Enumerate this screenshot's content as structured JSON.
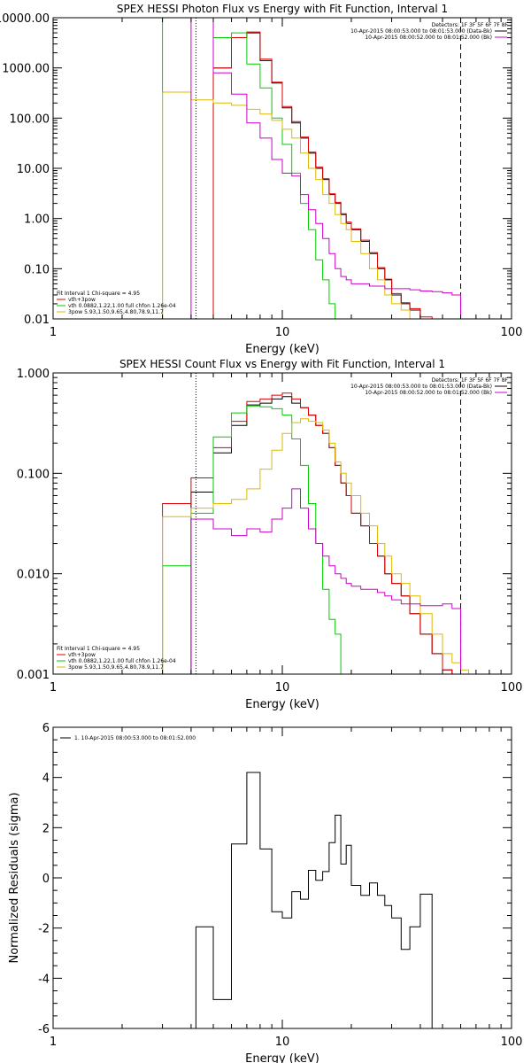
{
  "chart_data": [
    {
      "type": "line",
      "title": "SPEX HESSI Photon Flux vs Energy with Fit Function, Interval 1",
      "xlabel": "Energy (keV)",
      "ylabel": "",
      "xscale": "log",
      "yscale": "log",
      "xlim": [
        1,
        100
      ],
      "ylim": [
        0.01,
        10000
      ],
      "xticks": [
        "1",
        "10",
        "100"
      ],
      "yticks": [
        "0.01",
        "0.10",
        "1.00",
        "10.00",
        "100.00",
        "1000.00",
        "10000.00"
      ],
      "ytick_values": [
        0.01,
        0.1,
        1,
        10,
        100,
        1000,
        10000
      ],
      "vlines": [
        {
          "x": 4.2,
          "style": "dotted",
          "color": "#000000"
        },
        {
          "x": 60,
          "style": "dashed",
          "color": "#000000"
        }
      ],
      "legend_tr": [
        "Detectors: 1F 3F 5F 6F 7F 8F",
        "10-Apr-2015 08:00:53.000 to 08:01:53.000 (Data-Bk)",
        "10-Apr-2015 08:00:52.000 to 08:01:52.000 (Bk)"
      ],
      "legend_tr_colors": [
        null,
        "#000000",
        "#cc00cc"
      ],
      "legend_bl": [
        "Fit Interval 1   Chi-square = 4.95",
        "vth+3pow",
        "vth 0.0882,1.22,1.00  full chfon 1.26e-04",
        "3pow 5.93,1.50,9.65,4.80,78.9,11.7"
      ],
      "legend_bl_colors": [
        null,
        "#dd0000",
        "#00cc00",
        "#ddbb00"
      ],
      "edges": [
        3.0,
        4.0,
        5.0,
        6.0,
        7.0,
        8.0,
        9.0,
        10.0,
        11.0,
        12.0,
        13.0,
        14.0,
        15.0,
        16.0,
        17.0,
        18.0,
        19.0,
        20.0,
        22.0,
        24.0,
        26.0,
        28.0,
        30.0,
        33.0,
        36.0,
        40.0,
        45.0,
        50.0,
        55.0,
        60.0
      ],
      "series": [
        {
          "name": "Data-Bk",
          "color": "#000000",
          "start": 2,
          "values": [
            1000,
            4000,
            5000,
            1400,
            500,
            160,
            80,
            40,
            20,
            10,
            6,
            3,
            2,
            1.2,
            0.8,
            0.6,
            0.35,
            0.2,
            0.1,
            0.06,
            0.03,
            0.02,
            0.015,
            0.01
          ]
        },
        {
          "name": "vth+3pow",
          "color": "#dd0000",
          "start": 2,
          "values": [
            1000,
            4000,
            5200,
            1500,
            520,
            170,
            85,
            42,
            21,
            10.5,
            6.2,
            3.1,
            2.1,
            1.25,
            0.85,
            0.62,
            0.37,
            0.21,
            0.105,
            0.062,
            0.032,
            0.021,
            0.016,
            0.011
          ]
        },
        {
          "name": "vth",
          "color": "#00cc00",
          "start": 0,
          "values": [
            10000,
            10000,
            4000,
            5000,
            1200,
            400,
            100,
            30,
            8,
            2,
            0.6,
            0.15,
            0.06,
            0.02,
            0.01
          ]
        },
        {
          "name": "3pow",
          "color": "#ddbb00",
          "start": 0,
          "values": [
            330,
            230,
            200,
            180,
            150,
            120,
            90,
            60,
            40,
            20,
            10,
            6,
            3,
            2,
            1.2,
            0.8,
            0.6,
            0.35,
            0.2,
            0.1,
            0.06,
            0.03,
            0.02,
            0.015,
            0.01,
            0.01,
            0.01,
            0.01,
            0.01
          ]
        },
        {
          "name": "Bk",
          "color": "#cc00cc",
          "start": 1,
          "values": [
            10000,
            800,
            300,
            80,
            40,
            15,
            8,
            7,
            3,
            1.5,
            0.8,
            0.4,
            0.2,
            0.1,
            0.07,
            0.06,
            0.05,
            0.05,
            0.045,
            0.045,
            0.04,
            0.04,
            0.04,
            0.038,
            0.036,
            0.035,
            0.033,
            0.03
          ]
        }
      ]
    },
    {
      "type": "line",
      "title": "SPEX HESSI Count Flux vs Energy with Fit Function, Interval 1",
      "xlabel": "Energy (keV)",
      "ylabel": "",
      "xscale": "log",
      "yscale": "log",
      "xlim": [
        1,
        100
      ],
      "ylim": [
        0.001,
        1
      ],
      "xticks": [
        "1",
        "10",
        "100"
      ],
      "yticks": [
        "0.001",
        "0.010",
        "0.100",
        "1.000"
      ],
      "ytick_values": [
        0.001,
        0.01,
        0.1,
        1
      ],
      "vlines": [
        {
          "x": 4.2,
          "style": "dotted",
          "color": "#000000"
        },
        {
          "x": 60,
          "style": "dashed",
          "color": "#000000"
        }
      ],
      "legend_tr": [
        "Detectors: 1F 3F 5F 6F 7F 8F",
        "10-Apr-2015 08:00:53.000 to 08:01:53.000 (Data-Bk)",
        "10-Apr-2015 08:00:52.000 to 08:01:52.000 (Bk)"
      ],
      "legend_tr_colors": [
        null,
        "#000000",
        "#cc00cc"
      ],
      "legend_bl": [
        "Fit Interval 1   Chi-square = 4.95",
        "vth+3pow",
        "vth 0.0882,1.22,1.00  full chfon 1.26e-04",
        "3pow 5.93,1.50,9.65,4.80,78.9,11.7"
      ],
      "legend_bl_colors": [
        null,
        "#dd0000",
        "#00cc00",
        "#ddbb00"
      ],
      "edges": [
        3.0,
        4.0,
        5.0,
        6.0,
        7.0,
        8.0,
        9.0,
        10.0,
        11.0,
        12.0,
        13.0,
        14.0,
        15.0,
        16.0,
        17.0,
        18.0,
        19.0,
        20.0,
        22.0,
        24.0,
        26.0,
        28.0,
        30.0,
        33.0,
        36.0,
        40.0,
        45.0,
        50.0,
        55.0,
        60.0,
        65.0,
        70.0
      ],
      "series": [
        {
          "name": "Data-Bk",
          "color": "#000000",
          "start": 1,
          "values": [
            0.065,
            0.16,
            0.3,
            0.48,
            0.5,
            0.55,
            0.58,
            0.5,
            0.45,
            0.38,
            0.3,
            0.25,
            0.18,
            0.12,
            0.08,
            0.06,
            0.04,
            0.03,
            0.02,
            0.015,
            0.01,
            0.008,
            0.006,
            0.004,
            0.0025,
            0.0016,
            0.0011
          ]
        },
        {
          "name": "vth+3pow",
          "color": "#dd0000",
          "start": 0,
          "values": [
            0.05,
            0.09,
            0.18,
            0.33,
            0.52,
            0.55,
            0.6,
            0.63,
            0.55,
            0.45,
            0.38,
            0.3,
            0.25,
            0.18,
            0.12,
            0.08,
            0.06,
            0.04,
            0.03,
            0.02,
            0.015,
            0.01,
            0.008,
            0.006,
            0.004,
            0.0025,
            0.0016,
            0.0011
          ]
        },
        {
          "name": "vth",
          "color": "#00cc00",
          "start": 0,
          "values": [
            0.012,
            0.04,
            0.23,
            0.4,
            0.47,
            0.46,
            0.44,
            0.38,
            0.22,
            0.12,
            0.05,
            0.02,
            0.007,
            0.0035,
            0.0025
          ]
        },
        {
          "name": "3pow",
          "color": "#ddbb00",
          "start": 0,
          "values": [
            0.037,
            0.045,
            0.05,
            0.055,
            0.07,
            0.11,
            0.17,
            0.25,
            0.32,
            0.35,
            0.33,
            0.32,
            0.27,
            0.2,
            0.13,
            0.1,
            0.08,
            0.06,
            0.04,
            0.03,
            0.02,
            0.015,
            0.01,
            0.008,
            0.006,
            0.004,
            0.0025,
            0.0016,
            0.0013,
            0.0011,
            0.0009
          ]
        },
        {
          "name": "Bk",
          "color": "#cc00cc",
          "start": 1,
          "values": [
            0.035,
            0.028,
            0.024,
            0.028,
            0.026,
            0.035,
            0.045,
            0.07,
            0.045,
            0.028,
            0.02,
            0.015,
            0.012,
            0.01,
            0.009,
            0.008,
            0.0075,
            0.007,
            0.007,
            0.0065,
            0.006,
            0.0055,
            0.005,
            0.005,
            0.0048,
            0.0048,
            0.005,
            0.0045
          ]
        }
      ]
    },
    {
      "type": "line",
      "title": "",
      "xlabel": "Energy (keV)",
      "ylabel": "Normalized Residuals (sigma)",
      "xscale": "log",
      "yscale": "linear",
      "xlim": [
        1,
        100
      ],
      "ylim": [
        -6,
        6
      ],
      "xticks": [
        "1",
        "10",
        "100"
      ],
      "yticks": [
        "-6",
        "-4",
        "-2",
        "0",
        "2",
        "4",
        "6"
      ],
      "ytick_values": [
        -6,
        -4,
        -2,
        0,
        2,
        4,
        6
      ],
      "legend_tl": [
        "1. 10-Apr-2015 08:00:53.000 to 08:01:52.000"
      ],
      "edges": [
        4.2,
        5.0,
        6.0,
        7.0,
        8.0,
        9.0,
        10.0,
        11.0,
        12.0,
        13.0,
        14.0,
        15.0,
        16.0,
        17.0,
        18.0,
        19.0,
        20.0,
        22.0,
        24.0,
        26.0,
        28.0,
        30.0,
        33.0,
        36.0,
        40.0,
        45.0,
        50.0,
        55.0,
        60.0
      ],
      "series": [
        {
          "name": "",
          "color": "#000000",
          "start": 0,
          "values": [
            -1.95,
            -4.85,
            1.35,
            4.2,
            1.15,
            -1.35,
            -1.6,
            -0.55,
            -0.85,
            0.3,
            -0.1,
            0.25,
            1.4,
            2.5,
            0.55,
            1.3,
            -0.3,
            -0.7,
            -0.2,
            -0.7,
            -1.1,
            -1.6,
            -2.85,
            -1.95,
            -0.65
          ]
        }
      ]
    }
  ]
}
